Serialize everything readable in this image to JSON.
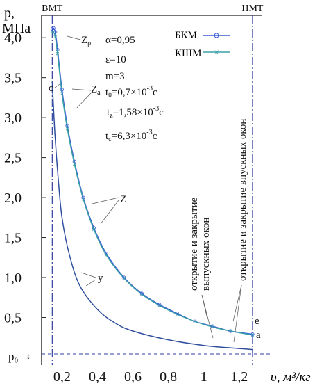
{
  "chart_data": {
    "type": "line",
    "ylabel_line1": "p,",
    "ylabel_line2": "МПа",
    "xlabel": "υ, м³/кг",
    "xlim": [
      0.085,
      1.33
    ],
    "ylim": [
      -0.07,
      4.28
    ],
    "yticks": [
      {
        "value": 0.5,
        "label": "0,5"
      },
      {
        "value": 1.0,
        "label": "1,0"
      },
      {
        "value": 1.5,
        "label": "1,5"
      },
      {
        "value": 2.0,
        "label": "2,0"
      },
      {
        "value": 2.5,
        "label": "2,5"
      },
      {
        "value": 3.0,
        "label": "3,0"
      },
      {
        "value": 3.5,
        "label": "3,5"
      },
      {
        "value": 4.0,
        "label": "4,0"
      }
    ],
    "xticks": [
      {
        "value": 0.2,
        "label": "0,2"
      },
      {
        "value": 0.4,
        "label": "0,4"
      },
      {
        "value": 0.6,
        "label": "0,6"
      },
      {
        "value": 0.8,
        "label": "0,8"
      },
      {
        "value": 1.0,
        "label": "1"
      },
      {
        "value": 1.2,
        "label": "1,2"
      }
    ],
    "p0": {
      "value": 0.0,
      "label": "p₀"
    },
    "vlines": [
      {
        "label": "ВМТ",
        "x": 0.145
      },
      {
        "label": "НМТ",
        "x": 1.275
      }
    ],
    "series": [
      {
        "name": "БКМ",
        "color": "#3b5bd6",
        "marker": "circle",
        "points": [
          [
            0.145,
            4.11
          ],
          [
            0.152,
            4.12
          ],
          [
            0.162,
            4.07
          ],
          [
            0.175,
            3.85
          ],
          [
            0.2,
            3.35
          ],
          [
            0.23,
            2.9
          ],
          [
            0.27,
            2.45
          ],
          [
            0.32,
            2.0
          ],
          [
            0.38,
            1.62
          ],
          [
            0.45,
            1.3
          ],
          [
            0.55,
            1.0
          ],
          [
            0.65,
            0.8
          ],
          [
            0.75,
            0.66
          ],
          [
            0.85,
            0.55
          ],
          [
            0.95,
            0.45
          ],
          [
            1.05,
            0.39
          ],
          [
            1.15,
            0.33
          ],
          [
            1.275,
            0.29
          ]
        ]
      },
      {
        "name": "КШМ",
        "color": "#3aa0a8",
        "marker": "x",
        "points": [
          [
            0.145,
            4.07
          ],
          [
            0.152,
            4.07
          ],
          [
            0.162,
            4.01
          ],
          [
            0.175,
            3.8
          ],
          [
            0.2,
            3.3
          ],
          [
            0.23,
            2.86
          ],
          [
            0.27,
            2.42
          ],
          [
            0.32,
            1.98
          ],
          [
            0.38,
            1.6
          ],
          [
            0.45,
            1.28
          ],
          [
            0.55,
            0.99
          ],
          [
            0.65,
            0.79
          ],
          [
            0.75,
            0.65
          ],
          [
            0.85,
            0.54
          ],
          [
            0.95,
            0.45
          ],
          [
            1.05,
            0.38
          ],
          [
            1.15,
            0.33
          ],
          [
            1.275,
            0.28
          ]
        ]
      },
      {
        "name": "compression",
        "color": "#2f4f9e",
        "marker": "none",
        "points": [
          [
            0.145,
            3.45
          ],
          [
            0.16,
            2.8
          ],
          [
            0.18,
            2.2
          ],
          [
            0.2,
            1.75
          ],
          [
            0.24,
            1.3
          ],
          [
            0.3,
            0.9
          ],
          [
            0.4,
            0.6
          ],
          [
            0.5,
            0.43
          ],
          [
            0.6,
            0.33
          ],
          [
            0.8,
            0.22
          ],
          [
            1.0,
            0.15
          ],
          [
            1.15,
            0.12
          ],
          [
            1.275,
            0.1
          ]
        ]
      }
    ],
    "annotations": {
      "alpha": "α=0,95",
      "eps": "ε=10",
      "m": "m=3",
      "t_theta_pre": "t",
      "t_theta_sub": "θ",
      "t_theta_mid": "=0,7×10",
      "t_theta_exp": "-3",
      "t_theta_unit": "c",
      "t_z_pre": "t",
      "t_z_sub": "z",
      "t_z_mid": "=1,58×10",
      "t_z_exp": "-3",
      "t_z_unit": "c",
      "t_c_pre": "t",
      "t_c_sub": "c",
      "t_c_mid": "=6,3×10",
      "t_c_exp": "-3",
      "t_c_unit": "c",
      "Zp_main": "Z",
      "Zp_sub": "p",
      "Za_main": "Z",
      "Za_sub": "a",
      "Z": "Z",
      "y": "y",
      "c": "c",
      "e": "e",
      "a": "a",
      "exhaust_line1": "открытие и закрытие",
      "exhaust_line2": "выпускных окон",
      "intake_line1": "открытие и закрытие впускных окон"
    }
  }
}
